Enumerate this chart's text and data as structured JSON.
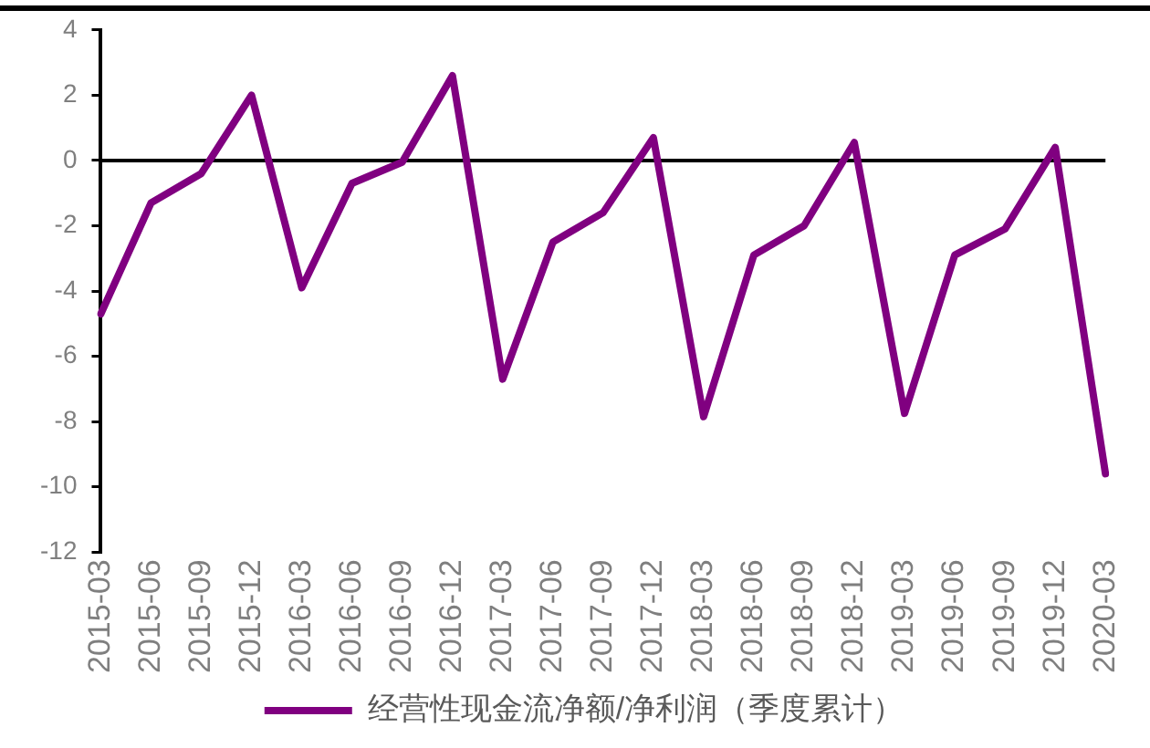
{
  "chart_data": {
    "type": "line",
    "categories": [
      "2015-03",
      "2015-06",
      "2015-09",
      "2015-12",
      "2016-03",
      "2016-06",
      "2016-09",
      "2016-12",
      "2017-03",
      "2017-06",
      "2017-09",
      "2017-12",
      "2018-03",
      "2018-06",
      "2018-09",
      "2018-12",
      "2019-03",
      "2019-06",
      "2019-09",
      "2019-12",
      "2020-03"
    ],
    "series": [
      {
        "name": "经营性现金流净额/净利润（季度累计）",
        "color": "#800080",
        "values": [
          -4.7,
          -1.3,
          -0.4,
          2.0,
          -3.9,
          -0.7,
          -0.05,
          2.6,
          -6.7,
          -2.5,
          -1.6,
          0.7,
          -7.85,
          -2.9,
          -2.0,
          0.55,
          -7.75,
          -2.9,
          -2.1,
          0.4,
          -9.6
        ]
      }
    ],
    "ylim": [
      -12,
      4
    ],
    "yticks": [
      -12,
      -10,
      -8,
      -6,
      -4,
      -2,
      0,
      2,
      4
    ],
    "ref_lines": [
      {
        "axis": "y",
        "value": 0,
        "color": "#000000",
        "line_style": "solid"
      }
    ],
    "legend": "bottom",
    "grid": false,
    "marker": "none",
    "line_style": "solid"
  }
}
